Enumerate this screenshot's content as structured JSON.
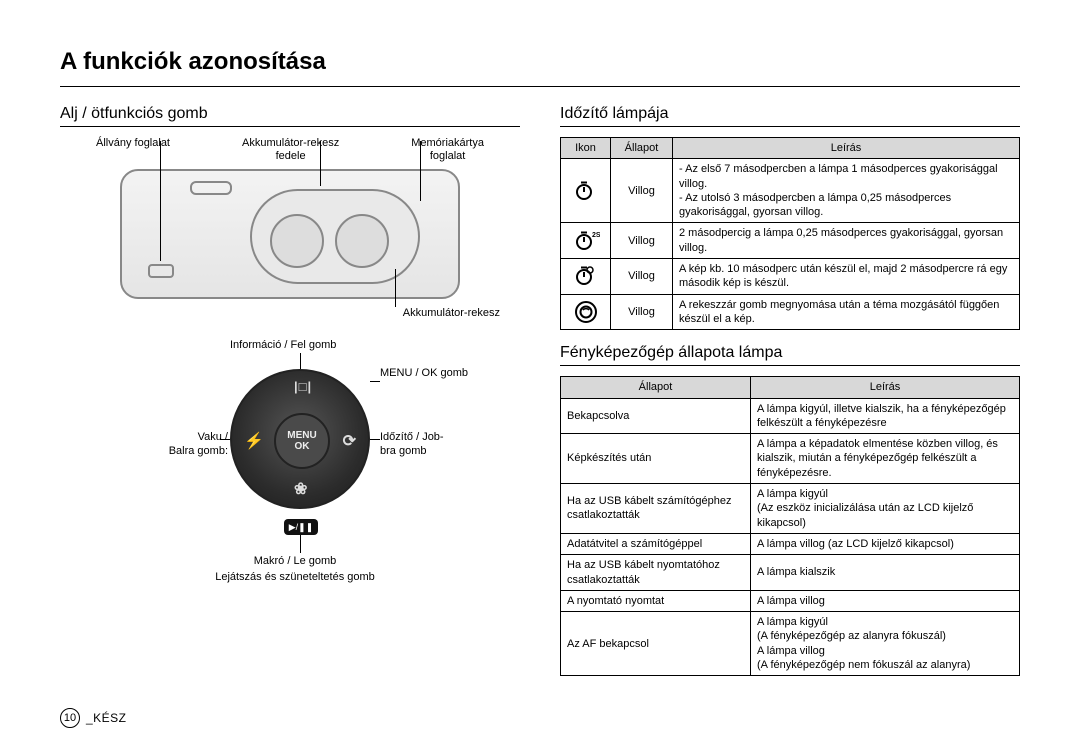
{
  "page": {
    "title": "A funkciók azonosítása",
    "number": "10",
    "footer_label": "_KÉSZ"
  },
  "left": {
    "heading": "Alj / ötfunkciós gomb",
    "top_labels": {
      "tripod": "Állvány foglalat",
      "battery_cover": "Akkumulátor-rekesz\nfedele",
      "card_slot": "Memóriakártya\nfoglalat"
    },
    "bottom_label": "Akkumulátor-rekesz",
    "dial": {
      "info_up": "Információ / Fel gomb",
      "menu_ok": "MENU / OK gomb",
      "flash_left": "Vaku /\nBalra gomb:",
      "timer_right": "Időzítő / Job-\nbra gomb",
      "macro_down": "Makró / Le gomb",
      "play_pause": "Lejátszás és szüneteltetés gomb",
      "center_top": "MENU",
      "center_bot": "OK",
      "icon_top": "|□|",
      "icon_left": "⚡",
      "icon_right": "⟳",
      "icon_bottom": "❀",
      "playpause_glyph": "▶/❚❚"
    }
  },
  "right": {
    "heading1": "Időzítő lámpája",
    "table1": {
      "headers": {
        "icon": "Ikon",
        "state": "Állapot",
        "desc": "Leírás"
      },
      "rows": [
        {
          "icon_type": "timer",
          "extra": "",
          "state": "Villog",
          "desc": "- Az első 7 másodpercben a lámpa 1 másodperces gyakorisággal villog.\n- Az utolsó 3 másodpercben a lámpa 0,25 másodperces gyakorisággal, gyorsan villog."
        },
        {
          "icon_type": "timer",
          "extra": "2S",
          "state": "Villog",
          "desc": "2 másodpercig a lámpa 0,25 másodperces gyakorisággal, gyorsan villog."
        },
        {
          "icon_type": "timer_double",
          "extra": "",
          "state": "Villog",
          "desc": "A kép kb. 10 másodperc után készül el, majd 2 másodpercre rá egy második kép is készül."
        },
        {
          "icon_type": "motion",
          "extra": "",
          "state": "Villog",
          "desc": "A rekeszzár gomb megnyomása után a téma mozgásától függően készül el a kép."
        }
      ]
    },
    "heading2": "Fényképezőgép állapota lámpa",
    "table2": {
      "headers": {
        "state": "Állapot",
        "desc": "Leírás"
      },
      "rows": [
        {
          "state": "Bekapcsolva",
          "desc": "A lámpa kigyúl, illetve kialszik, ha a fényképezőgép felkészült a fényképezésre"
        },
        {
          "state": "Képkészítés után",
          "desc": "A lámpa a képadatok elmentése közben villog, és kialszik, miután a fényképezőgép felkészült a fényképezésre."
        },
        {
          "state": "Ha az USB kábelt számítógéphez csatlakoztatták",
          "desc": "A lámpa kigyúl\n(Az eszköz inicializálása után az LCD kijelző kikapcsol)"
        },
        {
          "state": "Adatátvitel a számítógéppel",
          "desc": "A lámpa villog (az LCD kijelző kikapcsol)"
        },
        {
          "state": "Ha az USB kábelt nyomtatóhoz csatlakoztatták",
          "desc": "A lámpa kialszik"
        },
        {
          "state": "A nyomtató nyomtat",
          "desc": "A lámpa villog"
        },
        {
          "state": "Az AF bekapcsol",
          "desc": "A lámpa kigyúl\n(A fényképezőgép az alanyra fókuszál)\nA lámpa villog\n(A fényképezőgép nem fókuszál az alanyra)"
        }
      ]
    }
  },
  "colors": {
    "header_bg": "#d8d8d8",
    "border": "#000000",
    "dial_dark": "#2c2c2c"
  }
}
